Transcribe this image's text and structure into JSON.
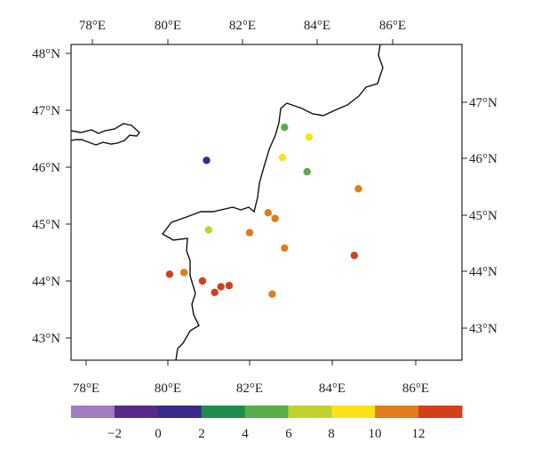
{
  "map": {
    "top_lon_labels": [
      "78°E",
      "80°E",
      "82°E",
      "84°E",
      "86°E"
    ],
    "bottom_lon_labels": [
      "78°E",
      "80°E",
      "82°E",
      "84°E",
      "86°E"
    ],
    "left_lat_labels": [
      "48°N",
      "47°N",
      "46°N",
      "45°N",
      "44°N",
      "43°N"
    ],
    "right_lat_labels": [
      "47°N",
      "46°N",
      "45°N",
      "44°N",
      "43°N"
    ],
    "stations": [
      {
        "lon": 80.95,
        "lat": 46.12,
        "category": 2
      },
      {
        "lon": 82.85,
        "lat": 46.7,
        "category": 4
      },
      {
        "lon": 83.45,
        "lat": 46.53,
        "category": 6
      },
      {
        "lon": 82.8,
        "lat": 46.17,
        "category": 6
      },
      {
        "lon": 83.4,
        "lat": 45.92,
        "category": 4
      },
      {
        "lon": 84.65,
        "lat": 45.62,
        "category": 7
      },
      {
        "lon": 82.45,
        "lat": 45.2,
        "category": 7
      },
      {
        "lon": 82.62,
        "lat": 45.1,
        "category": 7
      },
      {
        "lon": 81.0,
        "lat": 44.9,
        "category": 5
      },
      {
        "lon": 82.0,
        "lat": 44.85,
        "category": 7
      },
      {
        "lon": 82.85,
        "lat": 44.58,
        "category": 7
      },
      {
        "lon": 84.55,
        "lat": 44.45,
        "category": 8
      },
      {
        "lon": 80.05,
        "lat": 44.12,
        "category": 8
      },
      {
        "lon": 80.4,
        "lat": 44.15,
        "category": 7
      },
      {
        "lon": 80.85,
        "lat": 44.0,
        "category": 8
      },
      {
        "lon": 81.3,
        "lat": 43.9,
        "category": 8
      },
      {
        "lon": 81.5,
        "lat": 43.92,
        "category": 8
      },
      {
        "lon": 81.15,
        "lat": 43.8,
        "category": 8
      },
      {
        "lon": 82.55,
        "lat": 43.77,
        "category": 7
      }
    ]
  },
  "colorbar": {
    "colors": [
      "#a07cc0",
      "#5a2a8a",
      "#3a2a8a",
      "#1f8c4e",
      "#5aac48",
      "#c1d12e",
      "#fbe21a",
      "#e07c1a",
      "#d1401a"
    ],
    "tick_labels": [
      "−2",
      "0",
      "2",
      "4",
      "6",
      "8",
      "10",
      "12"
    ]
  }
}
